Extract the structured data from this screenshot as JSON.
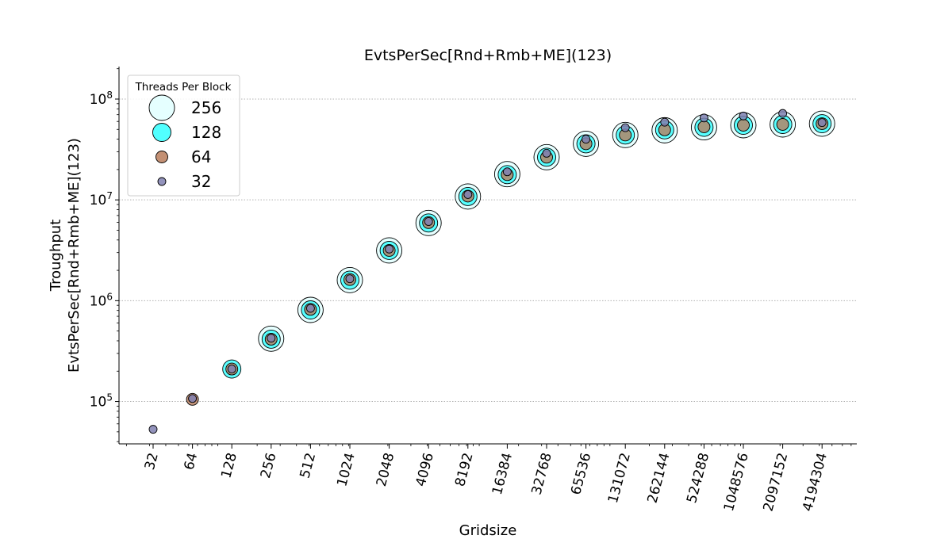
{
  "chart_data": {
    "type": "scatter",
    "title": "EvtsPerSec[Rnd+Rmb+ME](123)",
    "xlabel": "Gridsize",
    "ylabel_lines": [
      "Troughput",
      "EvtsPerSec[Rnd+Rmb+ME](123)"
    ],
    "x_scale": "log2",
    "y_scale": "log10",
    "x_ticks": [
      32,
      64,
      128,
      256,
      512,
      1024,
      2048,
      4096,
      8192,
      16384,
      32768,
      65536,
      131072,
      262144,
      524288,
      1048576,
      2097152,
      4194304
    ],
    "y_ticks": [
      {
        "value": 100000,
        "base": "10",
        "exp": "5"
      },
      {
        "value": 1000000,
        "base": "10",
        "exp": "6"
      },
      {
        "value": 10000000,
        "base": "10",
        "exp": "7"
      },
      {
        "value": 100000000,
        "base": "10",
        "exp": "8"
      }
    ],
    "ylim": [
      38000,
      210000000
    ],
    "grid": "y-major-dotted",
    "legend": {
      "title": "Threads Per Block",
      "position": "top-left"
    },
    "series": [
      {
        "name": "256",
        "color": "#e0ffff",
        "x": [
          256,
          512,
          1024,
          2048,
          4096,
          8192,
          16384,
          32768,
          65536,
          131072,
          262144,
          524288,
          1048576,
          2097152,
          4194304
        ],
        "y": [
          420000,
          810000,
          1600000,
          3150000,
          5900000,
          10800000,
          18000000,
          26500000,
          36000000,
          44000000,
          49000000,
          52500000,
          55000000,
          56000000,
          57000000
        ]
      },
      {
        "name": "128",
        "color": "#33ffff",
        "x": [
          128,
          256,
          512,
          1024,
          2048,
          4096,
          8192,
          16384,
          32768,
          65536,
          131072,
          262144,
          524288,
          1048576,
          2097152,
          4194304
        ],
        "y": [
          210000,
          415000,
          810000,
          1600000,
          3150000,
          5900000,
          10800000,
          17800000,
          26500000,
          36000000,
          44000000,
          49500000,
          52500000,
          55000000,
          56000000,
          57000000
        ]
      },
      {
        "name": "64",
        "color": "#b87c5c",
        "x": [
          64,
          128,
          256,
          512,
          1024,
          2048,
          4096,
          8192,
          16384,
          32768,
          65536,
          131072,
          262144,
          524288,
          1048576,
          2097152,
          4194304
        ],
        "y": [
          105000,
          210000,
          415000,
          820000,
          1620000,
          3150000,
          5950000,
          10900000,
          17800000,
          26500000,
          36000000,
          44000000,
          49500000,
          53000000,
          55000000,
          56000000,
          57000000
        ]
      },
      {
        "name": "32",
        "color": "#8080b0",
        "x": [
          32,
          64,
          128,
          256,
          512,
          1024,
          2048,
          4096,
          8192,
          16384,
          32768,
          65536,
          131072,
          262144,
          524288,
          1048576,
          2097152,
          4194304
        ],
        "y": [
          53000,
          107000,
          210000,
          425000,
          840000,
          1650000,
          3250000,
          6100000,
          11300000,
          19000000,
          29000000,
          40000000,
          52000000,
          59000000,
          65000000,
          68000000,
          72000000,
          58500000
        ]
      }
    ]
  }
}
